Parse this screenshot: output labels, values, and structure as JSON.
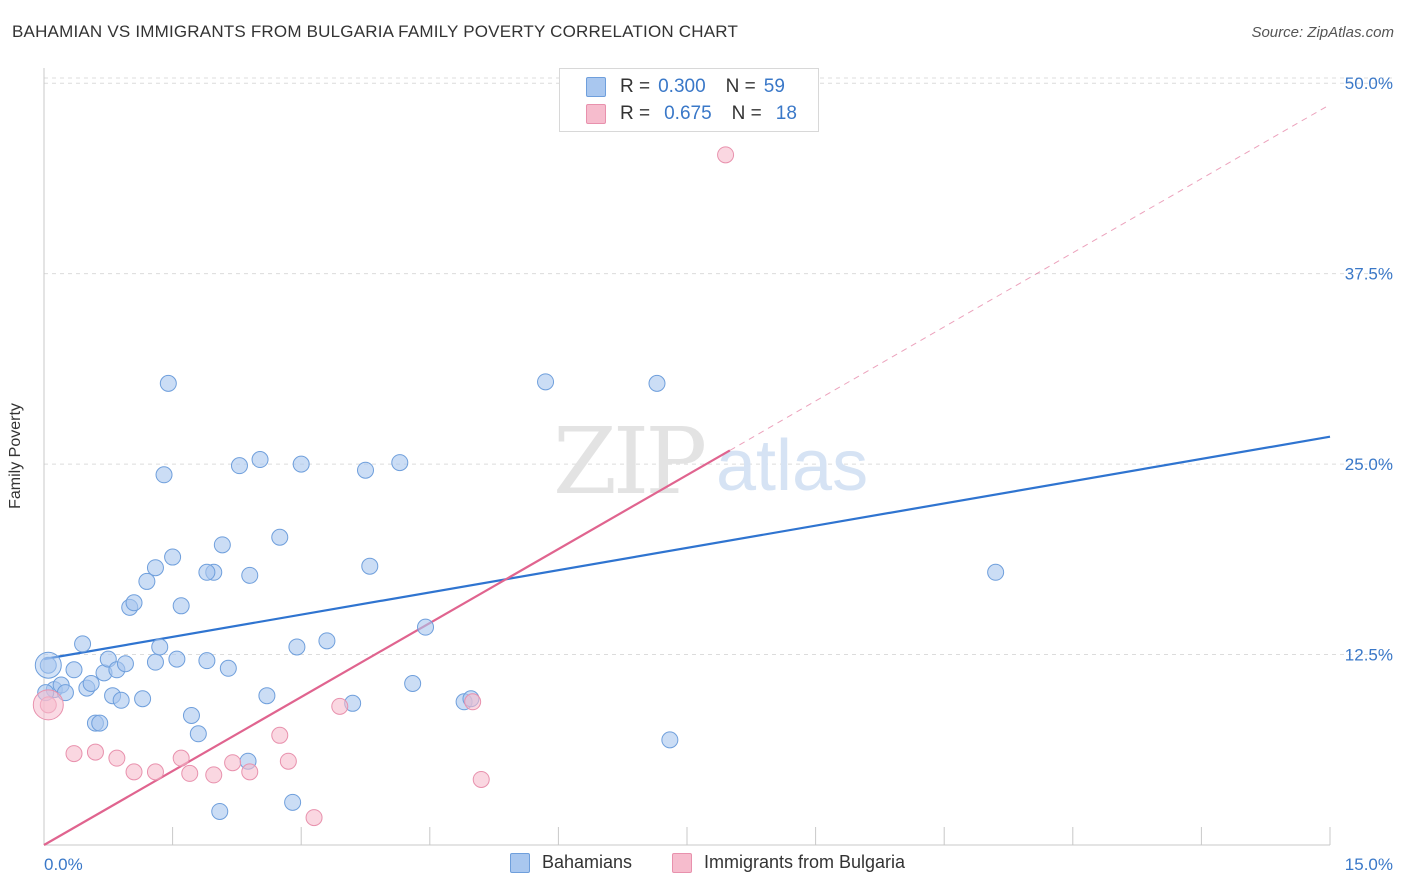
{
  "header": {
    "title": "BAHAMIAN VS IMMIGRANTS FROM BULGARIA FAMILY POVERTY CORRELATION CHART",
    "source": "Source: ZipAtlas.com"
  },
  "colors": {
    "blue_fill": "#a9c7ef",
    "blue_stroke": "#6f9fdc",
    "blue_line": "#2f74d0",
    "pink_fill": "#f6bccd",
    "pink_stroke": "#e891ad",
    "pink_line": "#e0648f",
    "axis_text": "#3a78c8",
    "grid": "#dcdcdc"
  },
  "watermark": {
    "zip": "ZIP",
    "atlas": "atlas"
  },
  "legend": {
    "rows": [
      {
        "r_label": "R =",
        "r_value": "0.300",
        "n_label": "N =",
        "n_value": "59"
      },
      {
        "r_label": "R =",
        "r_value": "0.675",
        "n_label": "N =",
        "n_value": "18"
      }
    ]
  },
  "bottom_legend": [
    "Bahamians",
    "Immigrants from Bulgaria"
  ],
  "chart_data": {
    "type": "scatter",
    "title": "BAHAMIAN VS IMMIGRANTS FROM BULGARIA FAMILY POVERTY CORRELATION CHART",
    "xlabel": "",
    "ylabel": "Family Poverty",
    "xlim": [
      0,
      15
    ],
    "ylim": [
      0,
      51
    ],
    "x_tick_labels": [
      "0.0%",
      "15.0%"
    ],
    "y_ticks": [
      12.5,
      25.0,
      37.5,
      50.0
    ],
    "y_tick_labels": [
      "12.5%",
      "25.0%",
      "37.5%",
      "50.0%"
    ],
    "grid": true,
    "legend_position": "top-center",
    "series": [
      {
        "name": "Bahamians",
        "R": 0.3,
        "N": 59,
        "trend": {
          "x": [
            0.0,
            15.0
          ],
          "y": [
            12.2,
            26.8
          ]
        },
        "points": [
          [
            0.05,
            11.8
          ],
          [
            0.12,
            10.2
          ],
          [
            0.2,
            10.5
          ],
          [
            0.25,
            10.0
          ],
          [
            0.35,
            11.5
          ],
          [
            0.45,
            13.2
          ],
          [
            0.5,
            10.3
          ],
          [
            0.55,
            10.6
          ],
          [
            0.6,
            8.0
          ],
          [
            0.65,
            8.0
          ],
          [
            0.7,
            11.3
          ],
          [
            0.75,
            12.2
          ],
          [
            0.8,
            9.8
          ],
          [
            0.85,
            11.5
          ],
          [
            0.9,
            9.5
          ],
          [
            0.95,
            11.9
          ],
          [
            1.0,
            15.6
          ],
          [
            1.05,
            15.9
          ],
          [
            1.15,
            9.6
          ],
          [
            1.2,
            17.3
          ],
          [
            1.3,
            12.0
          ],
          [
            1.3,
            18.2
          ],
          [
            1.35,
            13.0
          ],
          [
            1.4,
            24.3
          ],
          [
            1.45,
            30.3
          ],
          [
            1.5,
            18.9
          ],
          [
            1.55,
            12.2
          ],
          [
            1.6,
            15.7
          ],
          [
            1.72,
            8.5
          ],
          [
            1.8,
            7.3
          ],
          [
            1.9,
            12.1
          ],
          [
            1.98,
            17.9
          ],
          [
            2.08,
            19.7
          ],
          [
            2.15,
            11.6
          ],
          [
            2.28,
            24.9
          ],
          [
            2.38,
            5.5
          ],
          [
            2.4,
            17.7
          ],
          [
            2.52,
            25.3
          ],
          [
            2.6,
            9.8
          ],
          [
            2.75,
            20.2
          ],
          [
            2.9,
            2.8
          ],
          [
            2.95,
            13.0
          ],
          [
            3.0,
            25.0
          ],
          [
            3.3,
            13.4
          ],
          [
            3.6,
            9.3
          ],
          [
            3.75,
            24.6
          ],
          [
            3.8,
            18.3
          ],
          [
            4.15,
            25.1
          ],
          [
            4.3,
            10.6
          ],
          [
            4.45,
            14.3
          ],
          [
            4.9,
            9.4
          ],
          [
            4.98,
            9.6
          ],
          [
            5.85,
            30.4
          ],
          [
            7.15,
            30.3
          ],
          [
            7.3,
            6.9
          ],
          [
            11.1,
            17.9
          ],
          [
            0.02,
            10.0
          ],
          [
            1.9,
            17.9
          ],
          [
            2.05,
            2.2
          ]
        ]
      },
      {
        "name": "Immigrants from Bulgaria",
        "R": 0.675,
        "N": 18,
        "trend": {
          "x": [
            0.0,
            8.0
          ],
          "y": [
            0.0,
            25.9
          ]
        },
        "trend_extension": {
          "x": [
            8.0,
            15.0
          ],
          "y": [
            25.9,
            48.6
          ]
        },
        "points": [
          [
            0.05,
            9.2
          ],
          [
            0.35,
            6.0
          ],
          [
            0.6,
            6.1
          ],
          [
            0.85,
            5.7
          ],
          [
            1.05,
            4.8
          ],
          [
            1.3,
            4.8
          ],
          [
            1.6,
            5.7
          ],
          [
            1.7,
            4.7
          ],
          [
            1.98,
            4.6
          ],
          [
            2.2,
            5.4
          ],
          [
            2.4,
            4.8
          ],
          [
            2.75,
            7.2
          ],
          [
            2.85,
            5.5
          ],
          [
            3.15,
            1.8
          ],
          [
            3.45,
            9.1
          ],
          [
            5.0,
            9.4
          ],
          [
            5.1,
            4.3
          ],
          [
            7.95,
            45.3
          ]
        ]
      }
    ]
  }
}
